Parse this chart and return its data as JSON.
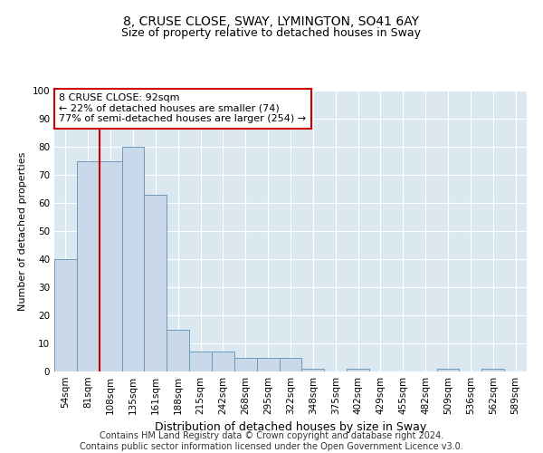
{
  "title": "8, CRUSE CLOSE, SWAY, LYMINGTON, SO41 6AY",
  "subtitle": "Size of property relative to detached houses in Sway",
  "xlabel": "Distribution of detached houses by size in Sway",
  "ylabel": "Number of detached properties",
  "categories": [
    "54sqm",
    "81sqm",
    "108sqm",
    "135sqm",
    "161sqm",
    "188sqm",
    "215sqm",
    "242sqm",
    "268sqm",
    "295sqm",
    "322sqm",
    "348sqm",
    "375sqm",
    "402sqm",
    "429sqm",
    "455sqm",
    "482sqm",
    "509sqm",
    "536sqm",
    "562sqm",
    "589sqm"
  ],
  "values": [
    40,
    75,
    75,
    80,
    63,
    15,
    7,
    7,
    5,
    5,
    5,
    1,
    0,
    1,
    0,
    0,
    0,
    1,
    0,
    1,
    0
  ],
  "bar_color": "#c9d9ea",
  "bar_edge_color": "#6a9abb",
  "vline_color": "#cc0000",
  "vline_x": 1.5,
  "annotation_text": "8 CRUSE CLOSE: 92sqm\n← 22% of detached houses are smaller (74)\n77% of semi-detached houses are larger (254) →",
  "annotation_box_facecolor": "#ffffff",
  "annotation_box_edgecolor": "#cc0000",
  "ylim": [
    0,
    100
  ],
  "yticks": [
    0,
    10,
    20,
    30,
    40,
    50,
    60,
    70,
    80,
    90,
    100
  ],
  "bg_color": "#dce8f0",
  "grid_color": "#ffffff",
  "footer": "Contains HM Land Registry data © Crown copyright and database right 2024.\nContains public sector information licensed under the Open Government Licence v3.0.",
  "title_fontsize": 10,
  "subtitle_fontsize": 9,
  "ylabel_fontsize": 8,
  "xlabel_fontsize": 9,
  "tick_fontsize": 7.5,
  "footer_fontsize": 7,
  "annotation_fontsize": 8
}
